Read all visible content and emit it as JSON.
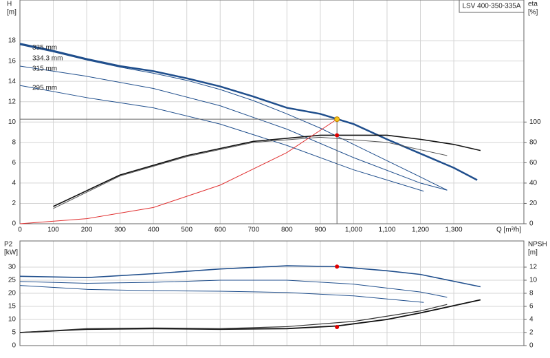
{
  "chart_data": [
    {
      "type": "line",
      "title": "LSV 400-350-335A",
      "y_label": "H",
      "y_unit": "[m]",
      "y2_label": "eta",
      "y2_unit": "[%]",
      "x_label": "Q [m³/h]",
      "xlim": [
        0,
        1510
      ],
      "ylim": [
        0,
        22
      ],
      "y2lim": [
        0,
        220
      ],
      "xticks": [
        0,
        100,
        200,
        300,
        400,
        500,
        600,
        700,
        800,
        900,
        {
          "value": 1000,
          "label": "1,000"
        },
        {
          "value": 1100,
          "label": "1,100"
        },
        {
          "value": 1200,
          "label": "1,200"
        },
        {
          "value": 1300,
          "label": "1,300"
        }
      ],
      "yticks": [
        0,
        2,
        4,
        6,
        8,
        10,
        12,
        14,
        16,
        18
      ],
      "y2ticks": [
        0,
        20,
        40,
        60,
        80,
        100
      ],
      "grid": true,
      "series": [
        {
          "name": "335 mm",
          "color": "#1f4e8c",
          "x": [
            0,
            100,
            200,
            300,
            400,
            500,
            600,
            700,
            800,
            900,
            1000,
            1100,
            1200,
            1300,
            1370
          ],
          "values": [
            17.7,
            17.0,
            16.2,
            15.5,
            15.0,
            14.3,
            13.5,
            12.5,
            11.4,
            10.8,
            9.8,
            8.3,
            6.9,
            5.5,
            4.3
          ]
        },
        {
          "name": "334.3 mm",
          "color": "#1f4e8c",
          "x": [
            0,
            100,
            200,
            300,
            400,
            500,
            600,
            700,
            800,
            900,
            1000,
            1100,
            1200,
            1280
          ],
          "values": [
            17.6,
            16.9,
            16.1,
            15.4,
            14.8,
            14.1,
            13.2,
            12.1,
            10.8,
            9.4,
            7.8,
            6.2,
            4.6,
            3.3
          ]
        },
        {
          "name": "315 mm",
          "color": "#1f4e8c",
          "x": [
            0,
            200,
            400,
            600,
            800,
            1000,
            1200,
            1280
          ],
          "values": [
            15.5,
            14.5,
            13.3,
            11.6,
            9.3,
            6.5,
            4.0,
            3.3
          ]
        },
        {
          "name": "295 mm",
          "color": "#1f4e8c",
          "x": [
            0,
            200,
            400,
            600,
            800,
            1000,
            1210
          ],
          "values": [
            13.6,
            12.4,
            11.4,
            9.8,
            7.7,
            5.3,
            3.2
          ]
        },
        {
          "axis": "y2",
          "color": "#111111",
          "x": [
            100,
            300,
            500,
            700,
            900,
            1100,
            1200,
            1300,
            1380
          ],
          "values": [
            17,
            48,
            67,
            81,
            87,
            87,
            83,
            78,
            72
          ]
        },
        {
          "axis": "y2",
          "color": "#555555",
          "x": [
            100,
            300,
            500,
            700,
            900,
            1100,
            1280
          ],
          "values": [
            15,
            47,
            66,
            80,
            85,
            80,
            67
          ]
        },
        {
          "color": "#e03030",
          "x": [
            0,
            200,
            400,
            600,
            800,
            950
          ],
          "values": [
            0,
            0.5,
            1.6,
            3.8,
            7.0,
            10.28
          ]
        }
      ],
      "operating_point": {
        "x": 950,
        "y": 10.28,
        "y2": 87
      }
    },
    {
      "type": "line",
      "y_label": "P2",
      "y_unit": "[kW]",
      "y2_label": "NPSH",
      "y2_unit": "[m]",
      "xlim": [
        0,
        1510
      ],
      "ylim": [
        0,
        40
      ],
      "y2lim": [
        0,
        16
      ],
      "xticks": [
        0,
        100,
        200,
        300,
        400,
        500,
        600,
        700,
        800,
        900,
        1000,
        1100,
        1200,
        1300
      ],
      "yticks": [
        0,
        5,
        10,
        15,
        20,
        25,
        30
      ],
      "y2ticks": [
        0,
        2,
        4,
        6,
        8,
        10,
        12
      ],
      "grid": true,
      "series": [
        {
          "color": "#1f4e8c",
          "x": [
            0,
            200,
            400,
            600,
            800,
            950,
            1100,
            1200,
            1380
          ],
          "values": [
            26.5,
            26,
            27.5,
            29.3,
            30.5,
            30.2,
            28.6,
            27.2,
            22.5
          ]
        },
        {
          "color": "#1f4e8c",
          "x": [
            0,
            200,
            400,
            600,
            800,
            1000,
            1200,
            1280
          ],
          "values": [
            24.5,
            23.8,
            24.2,
            25,
            25,
            23.5,
            20.5,
            18.5
          ]
        },
        {
          "color": "#1f4e8c",
          "x": [
            0,
            200,
            400,
            600,
            800,
            1000,
            1210
          ],
          "values": [
            23,
            21.5,
            21,
            20.8,
            20.3,
            19,
            16.5
          ]
        },
        {
          "axis": "y2",
          "color": "#111111",
          "x": [
            0,
            200,
            400,
            600,
            800,
            950,
            1100,
            1200,
            1380
          ],
          "values": [
            2,
            2.5,
            2.6,
            2.5,
            2.6,
            3,
            4,
            5,
            7
          ]
        },
        {
          "axis": "y2",
          "color": "#333333",
          "x": [
            0,
            200,
            400,
            600,
            800,
            1000,
            1200,
            1280
          ],
          "values": [
            2,
            2.6,
            2.7,
            2.6,
            2.9,
            3.7,
            5.3,
            6.3
          ]
        }
      ],
      "operating_point": {
        "x": 950,
        "y": 30.2,
        "y2": 2.84
      }
    }
  ]
}
